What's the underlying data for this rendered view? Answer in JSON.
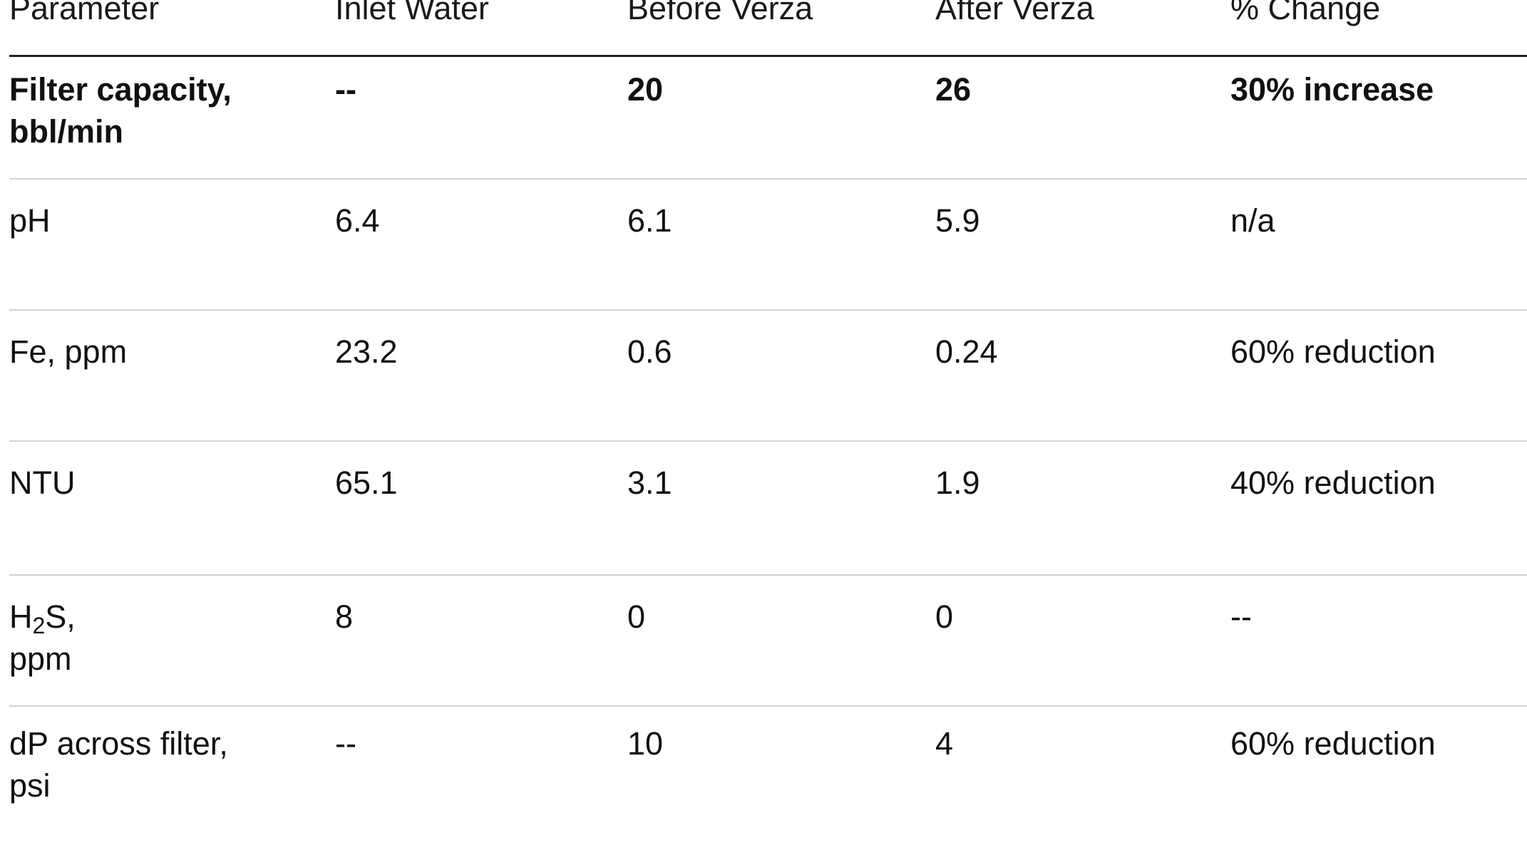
{
  "table": {
    "headers": [
      "Parameter",
      "Inlet Water",
      "Before Verza",
      "After Verza",
      "% Change"
    ],
    "rows": [
      {
        "parameter_line1": "Filter capacity,",
        "parameter_line2": "bbl/min",
        "inlet": "--",
        "before": "20",
        "after": "26",
        "change": "30% increase",
        "bold": true
      },
      {
        "parameter_line1": "pH",
        "parameter_line2": "",
        "inlet": "6.4",
        "before": "6.1",
        "after": "5.9",
        "change": "n/a"
      },
      {
        "parameter_line1": "Fe, ppm",
        "parameter_line2": "",
        "inlet": "23.2",
        "before": "0.6",
        "after": "0.24",
        "change": "60% reduction"
      },
      {
        "parameter_line1": "NTU",
        "parameter_line2": "",
        "inlet": "65.1",
        "before": "3.1",
        "after": "1.9",
        "change": "40% reduction"
      },
      {
        "parameter_h": "H",
        "parameter_sub": "2",
        "parameter_rest": "S,",
        "parameter_line2": "ppm",
        "inlet": "8",
        "before": "0",
        "after": "0",
        "change": "--"
      },
      {
        "parameter_line1": "dP across filter,",
        "parameter_line2": "psi",
        "inlet": "--",
        "before": "10",
        "after": "4",
        "change": "60% reduction"
      }
    ]
  }
}
